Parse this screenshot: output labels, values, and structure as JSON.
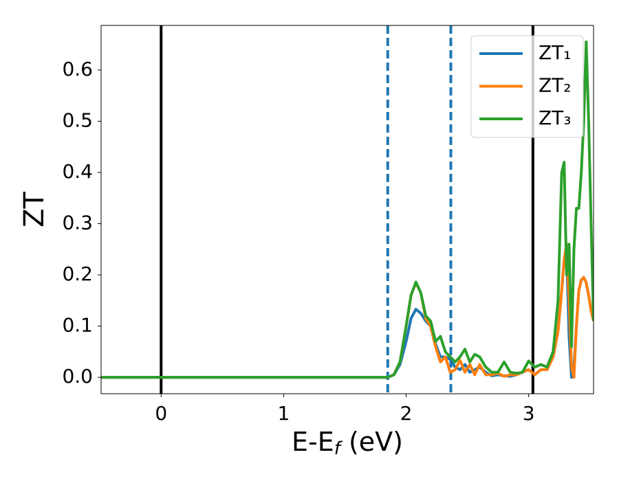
{
  "chart_data": {
    "type": "line",
    "xlabel": [
      "E-E",
      "f",
      " (eV)"
    ],
    "ylabel": "ZT",
    "xlim": [
      -0.49,
      3.53
    ],
    "ylim": [
      -0.032,
      0.687
    ],
    "xticks": [
      0,
      1,
      2,
      3
    ],
    "yticks": [
      {
        "value": 0,
        "label": "0.0"
      },
      0.1,
      0.2,
      0.3,
      0.4,
      0.5,
      0.6
    ],
    "legend": "upper right",
    "vlines": [
      {
        "x": 0,
        "color": "#000000",
        "style": "solid"
      },
      {
        "x": 1.85,
        "color": "#1f77b4",
        "style": "dashed"
      },
      {
        "x": 2.365,
        "color": "#1f77b4",
        "style": "dashed"
      },
      {
        "x": 3.035,
        "color": "#000000",
        "style": "solid"
      }
    ],
    "x": [
      -0.49,
      1.8,
      1.85,
      1.9,
      1.95,
      2.0,
      2.04,
      2.08,
      2.12,
      2.16,
      2.2,
      2.24,
      2.28,
      2.32,
      2.36,
      2.4,
      2.44,
      2.48,
      2.52,
      2.56,
      2.6,
      2.65,
      2.7,
      2.75,
      2.8,
      2.85,
      2.9,
      2.95,
      3.0,
      3.05,
      3.1,
      3.15,
      3.2,
      3.24,
      3.27,
      3.29,
      3.31,
      3.33,
      3.35,
      3.37,
      3.39,
      3.41,
      3.43,
      3.45,
      3.47,
      3.49,
      3.51,
      3.53
    ],
    "series": [
      {
        "name": "ZT₁",
        "color": "#1f77b4",
        "values": [
          0,
          0,
          0,
          0.005,
          0.025,
          0.07,
          0.115,
          0.133,
          0.125,
          0.11,
          0.1,
          0.065,
          0.04,
          0.04,
          0.035,
          0.02,
          0.015,
          0.025,
          0.01,
          0.015,
          0.02,
          0.01,
          0.003,
          0.005,
          0.003,
          0.002,
          0.005,
          0.01,
          0.015,
          0.005,
          0.015,
          0.015,
          0.04,
          0.09,
          0.17,
          0.23,
          0.25,
          0.08,
          0.0,
          0.02,
          0.1,
          0.17,
          0.19,
          0.195,
          0.185,
          0.16,
          0.13,
          0.11
        ]
      },
      {
        "name": "ZT₂",
        "color": "#ff7f0e",
        "values": [
          0,
          0,
          0,
          0.005,
          0.03,
          0.1,
          0.16,
          0.185,
          0.165,
          0.115,
          0.1,
          0.06,
          0.03,
          0.04,
          0.01,
          0.015,
          0.033,
          0.01,
          0.025,
          0.005,
          0.025,
          0.005,
          0.005,
          0.008,
          0.002,
          0.005,
          0.005,
          0.01,
          0.015,
          0.005,
          0.015,
          0.015,
          0.04,
          0.09,
          0.17,
          0.23,
          0.26,
          0.15,
          0.02,
          0.0,
          0.1,
          0.17,
          0.19,
          0.195,
          0.185,
          0.16,
          0.13,
          0.11
        ]
      },
      {
        "name": "ZT₃",
        "color": "#2ca02c",
        "values": [
          0,
          0,
          0,
          0.005,
          0.03,
          0.1,
          0.16,
          0.186,
          0.165,
          0.12,
          0.11,
          0.07,
          0.08,
          0.05,
          0.04,
          0.03,
          0.04,
          0.055,
          0.03,
          0.045,
          0.04,
          0.02,
          0.01,
          0.01,
          0.03,
          0.01,
          0.008,
          0.01,
          0.032,
          0.02,
          0.025,
          0.02,
          0.05,
          0.15,
          0.4,
          0.42,
          0.2,
          0.26,
          0.06,
          0.25,
          0.33,
          0.33,
          0.4,
          0.5,
          0.655,
          0.5,
          0.3,
          0.11
        ]
      }
    ]
  }
}
